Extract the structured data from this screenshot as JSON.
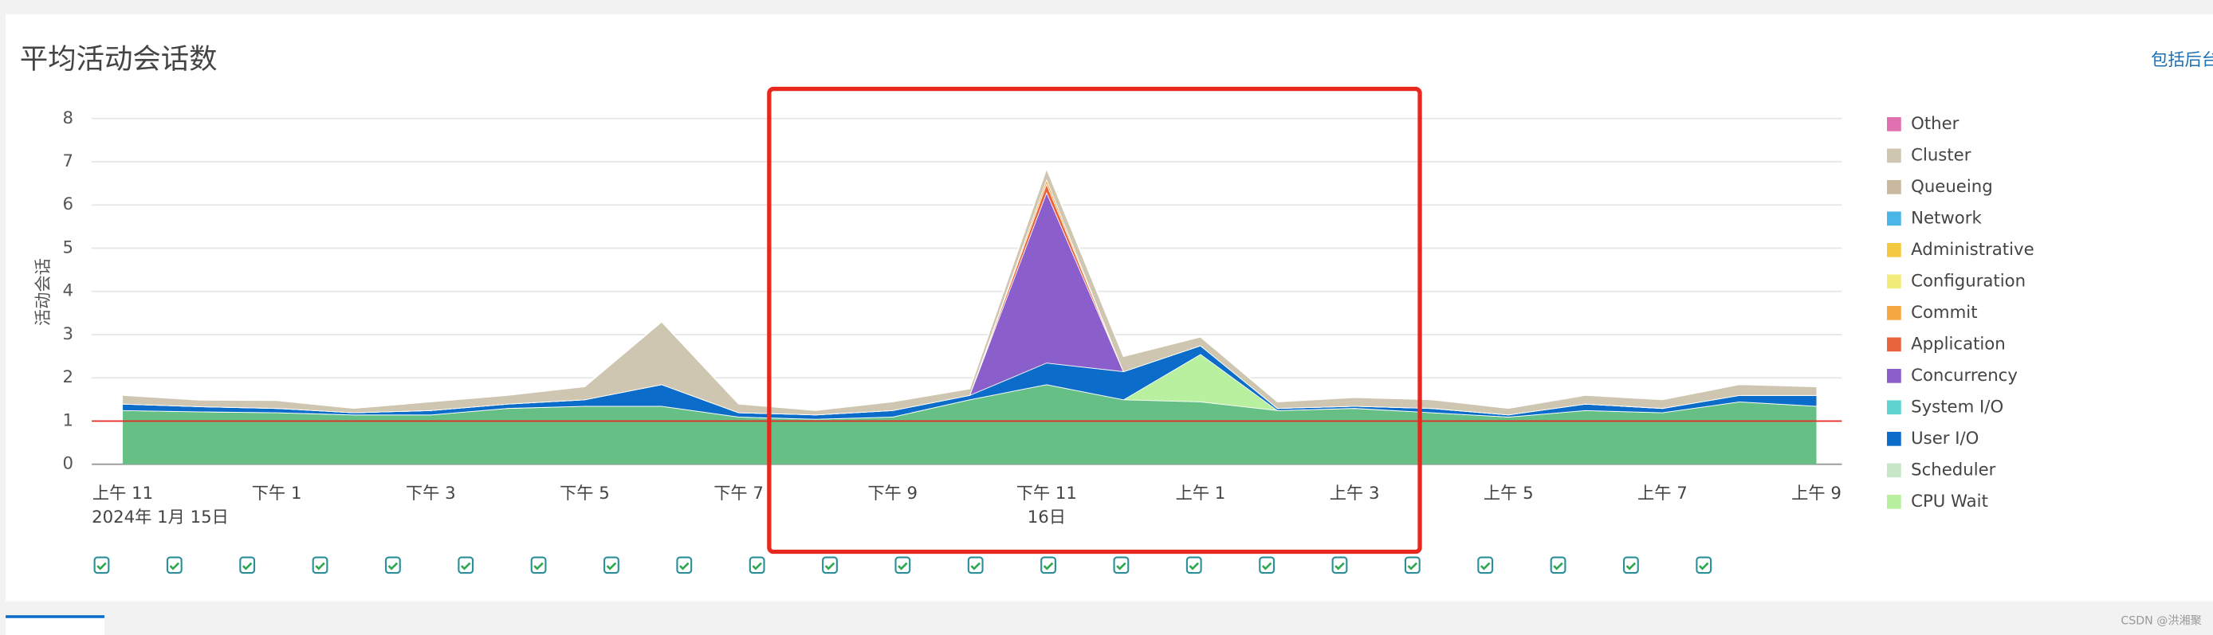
{
  "chart_data": {
    "type": "stacked-area",
    "title": "平均活动会话数",
    "link": "包括后台",
    "ylabel": "活动会话",
    "watermark": "CSDN @洪湘聚",
    "categories": [
      "上午 11",
      null,
      "下午 1",
      null,
      "下午 3",
      null,
      "下午 5",
      null,
      "下午 7",
      null,
      "下午 9",
      null,
      "下午 11",
      null,
      "上午 1",
      null,
      "上午 3",
      null,
      "上午 5",
      null,
      "上午 7",
      null,
      "上午 9"
    ],
    "date_labels": [
      "2024年 1月 15日",
      null,
      null,
      null,
      null,
      null,
      null,
      null,
      null,
      null,
      null,
      null,
      "16日",
      null,
      null,
      null,
      null,
      null,
      null,
      null,
      null,
      null,
      null
    ],
    "ylim": [
      0,
      8
    ],
    "yticks": [
      0,
      1,
      2,
      3,
      4,
      5,
      6,
      7,
      8
    ],
    "grid": true,
    "reference_line": {
      "value": 1,
      "color": "#e8281e"
    },
    "series": [
      {
        "color": "#66c085",
        "values": [
          1.25,
          1.22,
          1.2,
          1.15,
          1.15,
          1.3,
          1.35,
          1.35,
          1.1,
          1.05,
          1.1,
          1.5,
          1.85,
          1.5,
          1.45,
          1.25,
          1.3,
          1.2,
          1.1,
          1.25,
          1.2,
          1.45,
          1.35
        ]
      },
      {
        "name": "CPU Wait",
        "color": "#b8f0a0",
        "values": [
          0,
          0,
          0,
          0,
          0,
          0,
          0,
          0,
          0,
          0,
          0,
          0,
          0,
          0,
          1.1,
          0,
          0,
          0,
          0,
          0,
          0,
          0,
          0
        ]
      },
      {
        "name": "Scheduler",
        "color": "#c8e6c8",
        "values": [
          0,
          0,
          0,
          0,
          0,
          0,
          0,
          0,
          0,
          0,
          0,
          0,
          0,
          0,
          0,
          0,
          0,
          0,
          0,
          0,
          0,
          0,
          0
        ]
      },
      {
        "name": "User I/O",
        "color": "#0b6cc9",
        "values": [
          0.15,
          0.12,
          0.1,
          0.05,
          0.1,
          0.1,
          0.15,
          0.5,
          0.1,
          0.1,
          0.15,
          0.1,
          0.5,
          0.65,
          0.2,
          0.05,
          0.05,
          0.1,
          0.05,
          0.15,
          0.1,
          0.15,
          0.25
        ]
      },
      {
        "name": "System I/O",
        "color": "#5ed3d0",
        "values": [
          0,
          0,
          0,
          0,
          0,
          0,
          0,
          0,
          0,
          0,
          0,
          0,
          0,
          0,
          0,
          0,
          0,
          0,
          0,
          0,
          0,
          0,
          0
        ]
      },
      {
        "name": "Concurrency",
        "color": "#8a5fcb",
        "values": [
          0,
          0,
          0,
          0,
          0,
          0,
          0,
          0,
          0,
          0,
          0,
          0,
          3.95,
          0,
          0,
          0,
          0,
          0,
          0,
          0,
          0,
          0,
          0
        ]
      },
      {
        "name": "Application",
        "color": "#e8643c",
        "values": [
          0,
          0,
          0,
          0,
          0,
          0,
          0,
          0,
          0,
          0,
          0,
          0,
          0.2,
          0,
          0,
          0,
          0,
          0,
          0,
          0,
          0,
          0,
          0
        ]
      },
      {
        "name": "Commit",
        "color": "#f5a742",
        "values": [
          0,
          0,
          0,
          0,
          0,
          0,
          0,
          0,
          0,
          0,
          0,
          0,
          0.1,
          0,
          0,
          0,
          0,
          0,
          0,
          0,
          0,
          0,
          0
        ]
      },
      {
        "name": "Configuration",
        "color": "#f2ec7a",
        "values": [
          0,
          0,
          0,
          0,
          0,
          0,
          0,
          0,
          0,
          0,
          0,
          0,
          0,
          0,
          0,
          0,
          0,
          0,
          0,
          0,
          0,
          0,
          0
        ]
      },
      {
        "name": "Administrative",
        "color": "#f5c842",
        "values": [
          0,
          0,
          0,
          0,
          0,
          0,
          0,
          0,
          0,
          0,
          0,
          0,
          0,
          0,
          0,
          0,
          0,
          0,
          0,
          0,
          0,
          0,
          0
        ]
      },
      {
        "name": "Network",
        "color": "#4cb5e8",
        "values": [
          0,
          0,
          0,
          0,
          0,
          0,
          0,
          0,
          0,
          0,
          0,
          0,
          0,
          0,
          0,
          0,
          0,
          0,
          0,
          0,
          0,
          0,
          0
        ]
      },
      {
        "name": "Queueing",
        "color": "#c8b9a0",
        "values": [
          0,
          0,
          0,
          0,
          0,
          0,
          0,
          0,
          0,
          0,
          0,
          0,
          0,
          0,
          0,
          0,
          0,
          0,
          0,
          0,
          0,
          0,
          0
        ]
      },
      {
        "name": "Cluster",
        "color": "#cfc6b2",
        "values": [
          0.2,
          0.15,
          0.18,
          0.1,
          0.2,
          0.2,
          0.3,
          1.45,
          0.2,
          0.1,
          0.2,
          0.15,
          0.25,
          0.35,
          0.2,
          0.15,
          0.2,
          0.2,
          0.15,
          0.2,
          0.2,
          0.25,
          0.2
        ]
      },
      {
        "name": "Other",
        "color": "#e070b0",
        "values": [
          0,
          0,
          0,
          0,
          0,
          0,
          0,
          0,
          0,
          0,
          0,
          0,
          0,
          0,
          0,
          0,
          0,
          0,
          0,
          0,
          0,
          0,
          0
        ]
      }
    ]
  }
}
